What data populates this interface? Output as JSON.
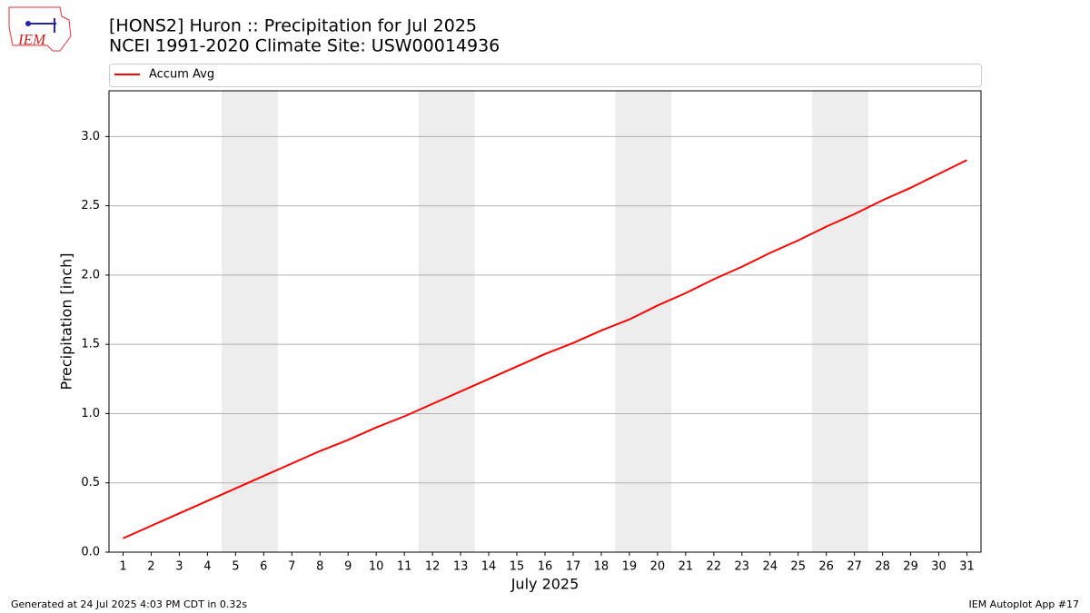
{
  "logo_text": "IEM",
  "chart_data": {
    "type": "line",
    "title": "[HONS2] Huron :: Precipitation for Jul 2025",
    "subtitle": "NCEI 1991-2020 Climate Site: USW00014936",
    "x_label": "July 2025",
    "y_label": "Precipitation [inch]",
    "x": [
      1,
      2,
      3,
      4,
      5,
      6,
      7,
      8,
      9,
      10,
      11,
      12,
      13,
      14,
      15,
      16,
      17,
      18,
      19,
      20,
      21,
      22,
      23,
      24,
      25,
      26,
      27,
      28,
      29,
      30,
      31
    ],
    "series": [
      {
        "name": "Accum Avg",
        "color": "#ff0000",
        "values": [
          0.1,
          0.19,
          0.28,
          0.37,
          0.46,
          0.55,
          0.64,
          0.73,
          0.81,
          0.9,
          0.98,
          1.07,
          1.16,
          1.25,
          1.34,
          1.43,
          1.51,
          1.6,
          1.68,
          1.78,
          1.87,
          1.97,
          2.06,
          2.16,
          2.25,
          2.35,
          2.44,
          2.54,
          2.63,
          2.73,
          2.83
        ]
      }
    ],
    "xlim": [
      0.5,
      31.5
    ],
    "xticks": [
      1,
      2,
      3,
      4,
      5,
      6,
      7,
      8,
      9,
      10,
      11,
      12,
      13,
      14,
      15,
      16,
      17,
      18,
      19,
      20,
      21,
      22,
      23,
      24,
      25,
      26,
      27,
      28,
      29,
      30,
      31
    ],
    "ylim": [
      0,
      3.33
    ],
    "yticks": [
      {
        "value": 0,
        "label": "0.0"
      },
      0.5,
      {
        "value": 1,
        "label": "1.0"
      },
      1.5,
      {
        "value": 2,
        "label": "2.0"
      },
      2.5,
      {
        "value": 3,
        "label": "3.0"
      }
    ],
    "grid": true,
    "shaded_spans": [
      [
        4.5,
        6.5
      ],
      [
        11.5,
        13.5
      ],
      [
        18.5,
        20.5
      ],
      [
        25.5,
        27.5
      ]
    ],
    "shade_color": "#ededed",
    "legend": "top"
  },
  "footer": {
    "left": "Generated at 24 Jul 2025 4:03 PM CDT in 0.32s",
    "right": "IEM Autoplot App #17"
  }
}
